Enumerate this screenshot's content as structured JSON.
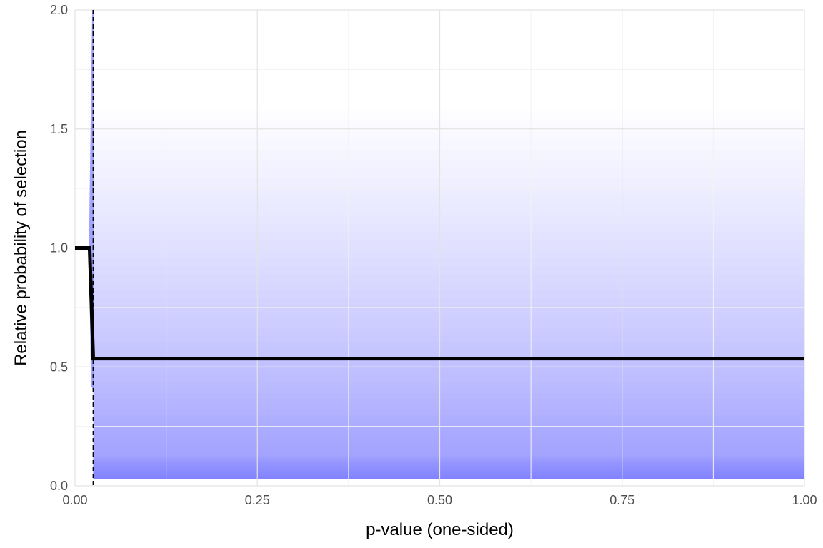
{
  "chart_data": {
    "type": "line",
    "title": "",
    "xlabel": "p-value (one-sided)",
    "ylabel": "Relative probability of selection",
    "xlim": [
      0,
      1
    ],
    "ylim": [
      0,
      2
    ],
    "x_ticks": [
      "0.00",
      "0.25",
      "0.50",
      "0.75",
      "1.00"
    ],
    "y_ticks": [
      "0.0",
      "0.5",
      "1.0",
      "1.5",
      "2.0"
    ],
    "grid": true,
    "legend": "none",
    "series": [
      {
        "points": [
          [
            0,
            1.0
          ],
          [
            0.02,
            1.0
          ],
          [
            0.025,
            0.535
          ],
          [
            1.0,
            0.535
          ]
        ]
      }
    ],
    "cutoff_line": {
      "x": 0.025,
      "style": "dashed"
    },
    "posterior_bands": {
      "color": "#4040ff",
      "description_only": true
    }
  },
  "colors": {
    "main_line": "#000000",
    "cutoff": "#000000",
    "posterior_fill": "#5a5aff",
    "grid_major": "#e3e3e3",
    "grid_minor": "#f2f2f2"
  }
}
